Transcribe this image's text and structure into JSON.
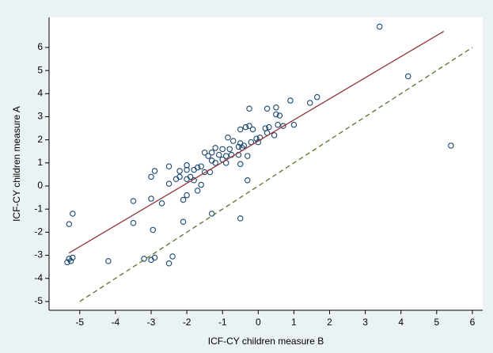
{
  "chart_data": {
    "type": "scatter",
    "x_label": "ICF-CY children measure B",
    "y_label": "ICF-CY children measure A",
    "xlim": [
      -5.86,
      6.29
    ],
    "ylim": [
      -5.38,
      7.3
    ],
    "xticks": [
      -5,
      -4,
      -3,
      -2,
      -1,
      0,
      1,
      2,
      3,
      4,
      5,
      6
    ],
    "yticks": [
      -5,
      -4,
      -3,
      -2,
      -1,
      0,
      1,
      2,
      3,
      4,
      5,
      6
    ],
    "series": [
      {
        "type": "scatter",
        "color": "#1a476f",
        "x": [
          3.4,
          4.2,
          5.4,
          1.65,
          1.45,
          0.9,
          1.0,
          0.5,
          0.5,
          0.6,
          0.25,
          -0.25,
          -0.25,
          -0.15,
          0.7,
          0.55,
          0.3,
          0.2,
          0.25,
          0.45,
          0.05,
          -0.05,
          0.0,
          -0.5,
          -0.85,
          -0.7,
          -0.5,
          -0.4,
          -0.55,
          -0.45,
          -0.2,
          -1.2,
          -1.0,
          -0.8,
          -1.3,
          -1.1,
          -0.9,
          -1.0,
          -1.3,
          -1.2,
          -0.9,
          -0.75,
          -0.55,
          -0.3,
          -0.5,
          -1.5,
          -1.4,
          -1.6,
          -1.7,
          -1.8,
          -1.5,
          -2.0,
          -2.2,
          -2.0,
          -1.9,
          -2.2,
          -2.5,
          -2.9,
          -3.0,
          -2.5,
          -2.3,
          -1.8,
          -2.0,
          -1.6,
          -1.7,
          -2.0,
          -2.1,
          -2.7,
          -3.5,
          -3.0,
          -0.3,
          -0.5,
          -1.3,
          -2.1,
          -3.5,
          -2.95,
          -5.2,
          -5.3,
          -4.2,
          -3.2,
          -3.0,
          -2.9,
          -2.4,
          -2.5,
          -5.3,
          -5.2,
          -5.35,
          -5.25,
          -0.35,
          -1.35
        ],
        "values": [
          6.9,
          4.75,
          1.75,
          3.85,
          3.6,
          3.7,
          2.65,
          3.4,
          3.1,
          3.05,
          3.35,
          3.35,
          2.6,
          2.45,
          2.6,
          2.65,
          2.55,
          2.5,
          2.3,
          2.2,
          2.1,
          2.05,
          1.9,
          2.45,
          2.1,
          1.95,
          1.85,
          1.75,
          1.7,
          1.65,
          1.9,
          1.65,
          1.6,
          1.6,
          1.45,
          1.35,
          1.3,
          1.15,
          1.1,
          1.0,
          1.0,
          1.35,
          1.35,
          1.3,
          0.95,
          1.45,
          1.3,
          0.85,
          0.8,
          0.7,
          0.6,
          0.9,
          0.65,
          0.7,
          0.4,
          0.4,
          0.85,
          0.65,
          0.4,
          0.1,
          0.3,
          0.25,
          0.3,
          0.05,
          -0.2,
          -0.4,
          -0.6,
          -0.75,
          -0.65,
          -0.55,
          0.25,
          -1.4,
          -1.2,
          -1.55,
          -1.6,
          -1.9,
          -1.2,
          -1.65,
          -3.25,
          -3.15,
          -3.2,
          -3.1,
          -3.05,
          -3.35,
          -3.15,
          -3.1,
          -3.3,
          -3.25,
          2.55,
          0.6
        ]
      },
      {
        "type": "line",
        "color": "#90353b",
        "x": [
          -5.3,
          5.2
        ],
        "values": [
          -2.9,
          6.7
        ]
      },
      {
        "type": "line",
        "color": "#55752f",
        "dashed": true,
        "x": [
          -5,
          6
        ],
        "values": [
          -5,
          6
        ]
      }
    ]
  }
}
